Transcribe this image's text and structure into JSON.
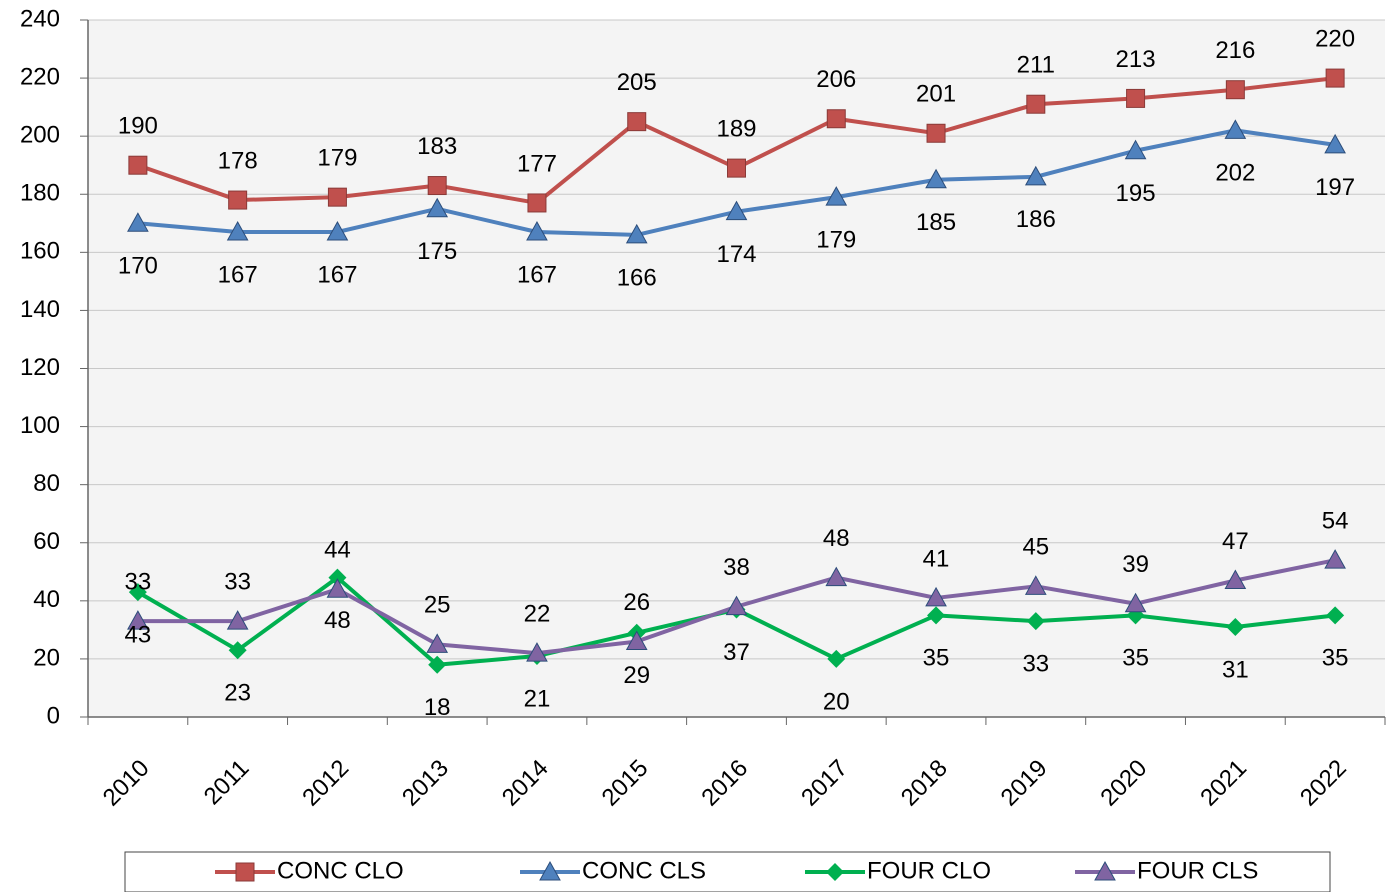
{
  "chart_data": {
    "type": "line",
    "categories": [
      "2010",
      "2011",
      "2012",
      "2013",
      "2014",
      "2015",
      "2016",
      "2017",
      "2018",
      "2019",
      "2020",
      "2021",
      "2022"
    ],
    "series": [
      {
        "name": "CONC CLO",
        "color": "#c0504d",
        "marker": "square",
        "values": [
          190,
          178,
          179,
          183,
          177,
          205,
          189,
          206,
          201,
          211,
          213,
          216,
          220
        ]
      },
      {
        "name": "CONC CLS",
        "color": "#4f81bd",
        "marker": "triangle",
        "values": [
          170,
          167,
          167,
          175,
          167,
          166,
          174,
          179,
          185,
          186,
          195,
          202,
          197
        ]
      },
      {
        "name": "FOUR CLO",
        "color": "#00b050",
        "marker": "diamond",
        "values": [
          43,
          23,
          48,
          18,
          21,
          29,
          37,
          20,
          35,
          33,
          35,
          31,
          35
        ]
      },
      {
        "name": "FOUR CLS",
        "color": "#8064a2",
        "marker": "triangle",
        "values": [
          33,
          33,
          44,
          25,
          22,
          26,
          38,
          48,
          41,
          45,
          39,
          47,
          54
        ]
      }
    ],
    "ylim": [
      0,
      240
    ],
    "yticks": [
      0,
      20,
      40,
      60,
      80,
      100,
      120,
      140,
      160,
      180,
      200,
      220,
      240
    ],
    "grid": true,
    "legend": "bottom"
  }
}
